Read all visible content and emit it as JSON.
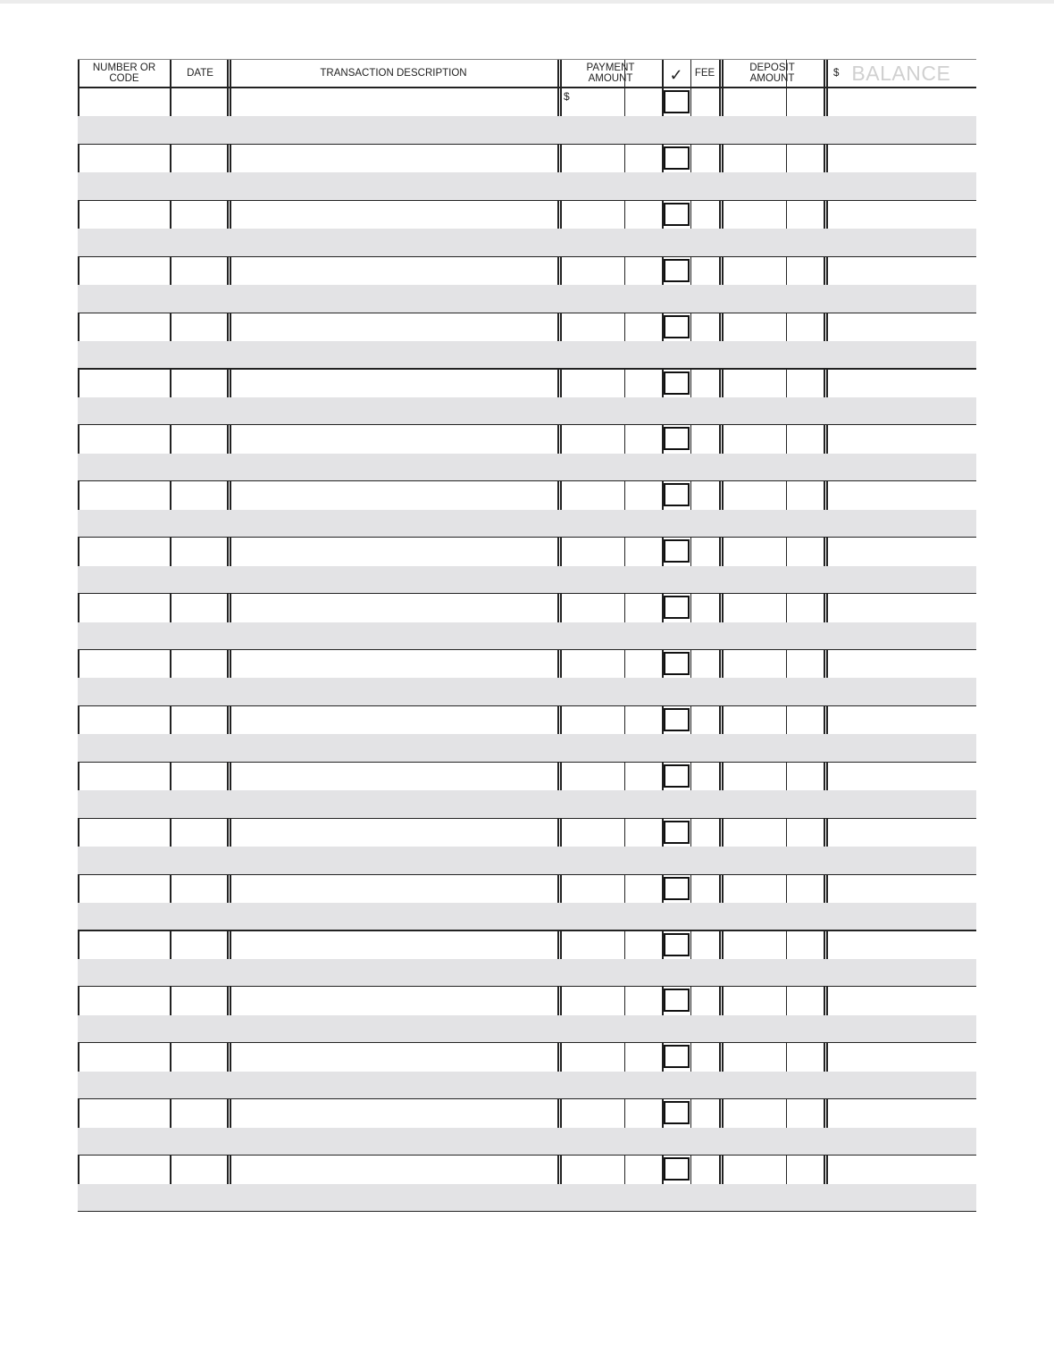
{
  "headers": {
    "number_or_code": "NUMBER OR\nCODE",
    "date": "DATE",
    "description": "TRANSACTION DESCRIPTION",
    "payment": "PAYMENT\nAMOUNT",
    "check": "✓",
    "fee": "FEE",
    "deposit": "DEPOSIT\nAMOUNT",
    "balance_symbol": "$",
    "balance": "BALANCE"
  },
  "first_row_payment_symbol": "$",
  "colors": {
    "band": "#e3e3e5",
    "lines": "#222222",
    "balance_label": "#d0d0d0"
  }
}
